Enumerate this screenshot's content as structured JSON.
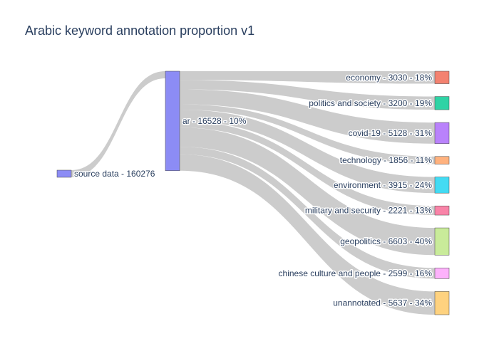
{
  "chart_data": {
    "type": "sankey",
    "title": "Arabic keyword annotation proportion v1",
    "link_color": "#cccccc",
    "nodes": [
      {
        "id": "source",
        "label": "source data - 160276",
        "value": 160276,
        "color": "#8c8cf5"
      },
      {
        "id": "ar",
        "label": "ar - 16528 - 10%",
        "value": 16528,
        "color": "#8c8cf5"
      },
      {
        "id": "economy",
        "label": "economy - 3030 - 18%",
        "value": 3030,
        "color": "#f38270"
      },
      {
        "id": "politics",
        "label": "politics and society - 3200 - 19%",
        "value": 3200,
        "color": "#2fd3a5"
      },
      {
        "id": "covid",
        "label": "covid-19 - 5128 - 31%",
        "value": 5128,
        "color": "#b982fb"
      },
      {
        "id": "technology",
        "label": "technology - 1856 - 11%",
        "value": 1856,
        "color": "#ffb27e"
      },
      {
        "id": "environment",
        "label": "environment - 3915 - 24%",
        "value": 3915,
        "color": "#43dbf3"
      },
      {
        "id": "military",
        "label": "military and security - 2221 - 13%",
        "value": 2221,
        "color": "#f984a8"
      },
      {
        "id": "geopolitics",
        "label": "geopolitics - 6603 - 40%",
        "value": 6603,
        "color": "#c9eb9a"
      },
      {
        "id": "chinese",
        "label": "chinese culture and people - 2599 - 16%",
        "value": 2599,
        "color": "#fdb2fb"
      },
      {
        "id": "unannotated",
        "label": "unannotated - 5637 - 34%",
        "value": 5637,
        "color": "#fed27f"
      }
    ],
    "links": [
      {
        "source": "source",
        "target": "ar",
        "value": 16528
      },
      {
        "source": "ar",
        "target": "economy",
        "value": 3030
      },
      {
        "source": "ar",
        "target": "politics",
        "value": 3200
      },
      {
        "source": "ar",
        "target": "covid",
        "value": 5128
      },
      {
        "source": "ar",
        "target": "technology",
        "value": 1856
      },
      {
        "source": "ar",
        "target": "environment",
        "value": 3915
      },
      {
        "source": "ar",
        "target": "military",
        "value": 2221
      },
      {
        "source": "ar",
        "target": "geopolitics",
        "value": 6603
      },
      {
        "source": "ar",
        "target": "chinese",
        "value": 2599
      },
      {
        "source": "ar",
        "target": "unannotated",
        "value": 5637
      }
    ]
  }
}
